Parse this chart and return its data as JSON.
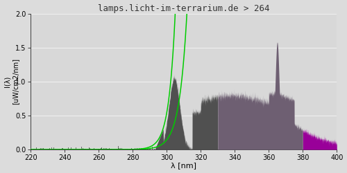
{
  "title": "lamps.licht-im-terrarium.de > 264",
  "xlabel": "λ [nm]",
  "ylabel_line1": "I(λ)",
  "ylabel_line2": "[uW/cm2/nm]",
  "xlim": [
    220,
    400
  ],
  "ylim": [
    0.0,
    2.0
  ],
  "yticks": [
    0.0,
    0.5,
    1.0,
    1.5,
    2.0
  ],
  "xticks": [
    220,
    240,
    260,
    280,
    300,
    320,
    340,
    360,
    380,
    400
  ],
  "bg_color": "#dcdcdc",
  "plot_bg_color": "#d8d8d8",
  "color_dark_gray": "#505050",
  "color_mid_purple": "#6e5f72",
  "color_purple": "#990099",
  "color_green": "#00cc00",
  "grid_color": "#c8c8c8",
  "region1_start": 293,
  "region1_end": 330,
  "region2_end": 380,
  "region3_end": 401
}
